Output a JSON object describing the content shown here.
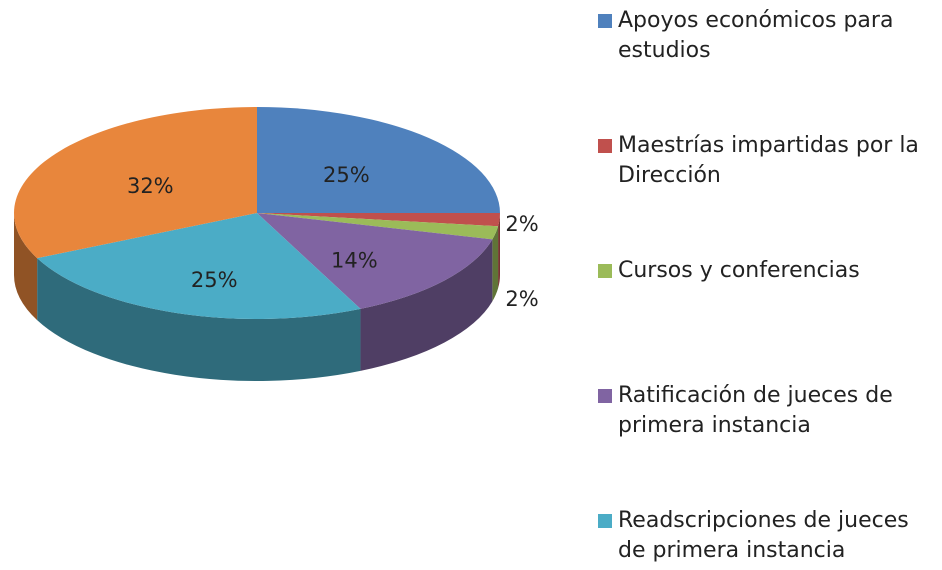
{
  "chart_data": {
    "type": "pie",
    "categories": [
      "Apoyos económicos para estudios",
      "Maestrías impartidas por la Dirección",
      "Cursos y conferencias",
      "Ratificación de jueces de primera instancia",
      "Readscripciones de jueces de primera instancia",
      null
    ],
    "values": [
      25,
      2,
      2,
      14,
      25,
      32
    ],
    "value_labels": [
      "25%",
      "2%",
      "2%",
      "14%",
      "25%",
      "32%"
    ],
    "colors": [
      "#4f81bd",
      "#c0504d",
      "#9bbb59",
      "#8064a2",
      "#4bacc6",
      "#e8863c"
    ],
    "legend": "right"
  }
}
